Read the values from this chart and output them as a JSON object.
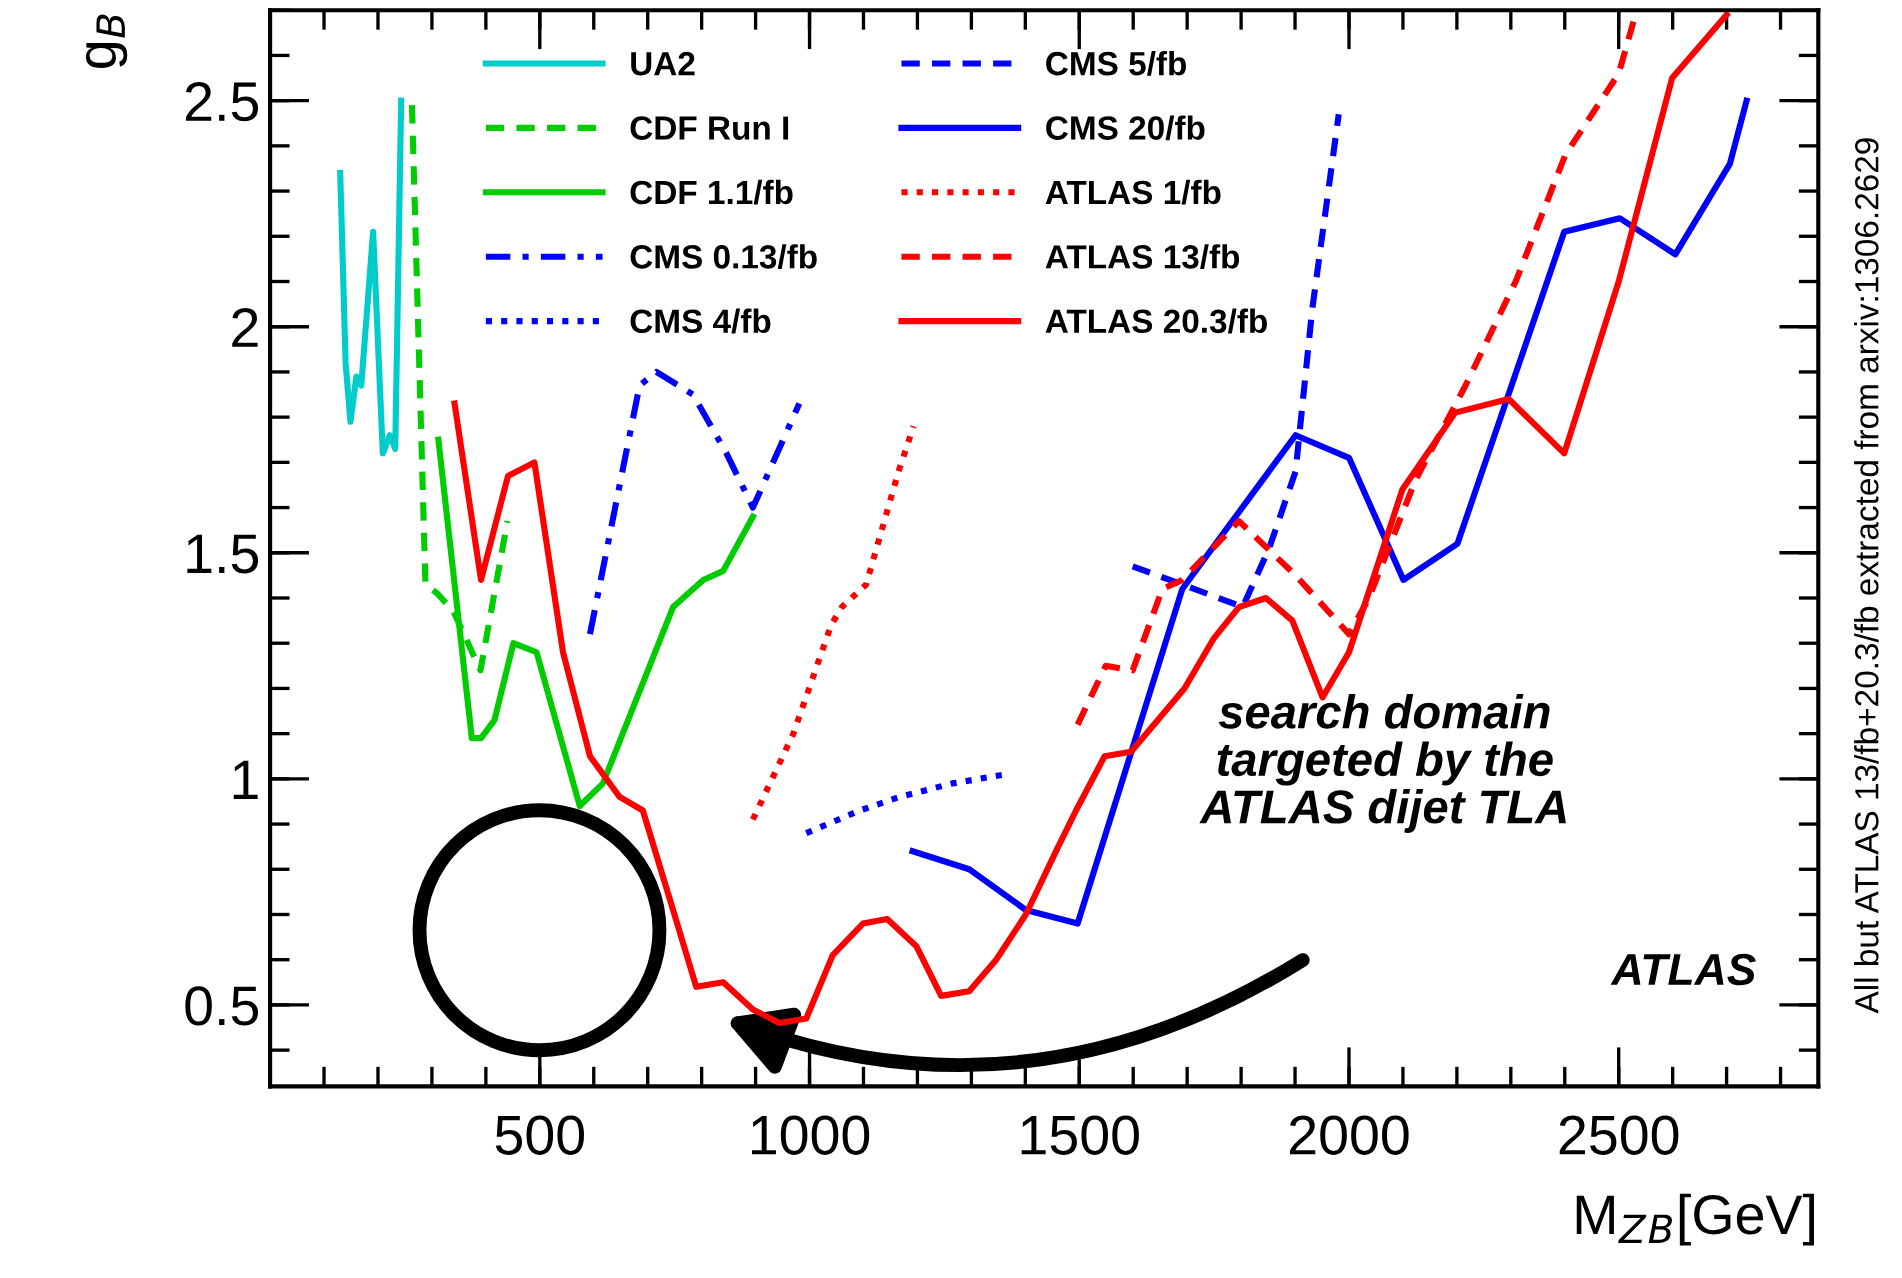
{
  "chart_data": {
    "type": "line",
    "xlabel": "M$_{Z}$$_{B}$[GeV]",
    "ylabel": "g$_{B}$",
    "xlim": [
      0,
      2870
    ],
    "ylim": [
      0.32,
      2.7
    ],
    "xticks": [
      500,
      1000,
      1500,
      2000,
      2500
    ],
    "yticks": [
      0.5,
      1,
      1.5,
      2,
      2.5
    ],
    "grid": false,
    "legend": "top left",
    "marker": "none",
    "annotations": [
      "search domain\ntargeted by the\nATLAS dijet TLA",
      "ATLAS",
      "All but ATLAS 13/fb+20.3/fb extracted from arxiv:1306.2629"
    ],
    "series": [
      {
        "name": "UA2",
        "color": "#00cccc",
        "line_style": "solid",
        "x": [
          130,
          140,
          149,
          160,
          169,
          191,
          209,
          222,
          232,
          243
        ],
        "values": [
          2.34,
          1.92,
          1.79,
          1.89,
          1.87,
          2.21,
          1.72,
          1.76,
          1.73,
          2.5
        ]
      },
      {
        "name": "CDF Run I",
        "color": "#00cc00",
        "line_style": "dashed",
        "x": [
          263,
          288,
          310,
          340,
          390,
          440
        ],
        "values": [
          2.49,
          1.43,
          1.41,
          1.37,
          1.24,
          1.57
        ]
      },
      {
        "name": "CDF 1.1/fb",
        "color": "#00cc00",
        "line_style": "solid",
        "x": [
          312,
          374,
          391,
          416,
          451,
          494,
          574,
          617,
          747,
          803,
          840,
          895
        ],
        "values": [
          1.75,
          1.09,
          1.09,
          1.13,
          1.3,
          1.28,
          0.94,
          0.99,
          1.38,
          1.44,
          1.46,
          1.58
        ]
      },
      {
        "name": "CMS 0.13/fb",
        "color": "#0000ff",
        "line_style": "dashdot",
        "x": [
          593,
          648,
          685,
          716,
          784,
          846,
          895,
          981
        ],
        "values": [
          1.32,
          1.65,
          1.87,
          1.9,
          1.85,
          1.72,
          1.6,
          1.83
        ]
      },
      {
        "name": "CMS 4/fb",
        "color": "#0000ff",
        "line_style": "dotted",
        "x": [
          994,
          1093,
          1167,
          1265,
          1364
        ],
        "values": [
          0.88,
          0.93,
          0.96,
          0.99,
          1.01
        ]
      },
      {
        "name": "CMS 5/fb",
        "color": "#0000ff",
        "line_style": "dashed",
        "x": [
          1599,
          1691,
          1803,
          1852,
          1901,
          1932,
          1981
        ],
        "values": [
          1.47,
          1.43,
          1.38,
          1.51,
          1.68,
          2.04,
          2.47
        ]
      },
      {
        "name": "CMS 20/fb",
        "color": "#0000ff",
        "line_style": "solid",
        "x": [
          1191,
          1296,
          1401,
          1497,
          1691,
          1901,
          2000,
          2101,
          2201,
          2399,
          2502,
          2605,
          2706,
          2737
        ],
        "values": [
          0.84,
          0.8,
          0.71,
          0.68,
          1.42,
          1.76,
          1.71,
          1.44,
          1.52,
          2.21,
          2.24,
          2.16,
          2.36,
          2.5
        ]
      },
      {
        "name": "ATLAS 1/fb",
        "color": "#ff0000",
        "line_style": "dotted",
        "x": [
          895,
          970,
          1040,
          1060,
          1105,
          1165,
          1193
        ],
        "values": [
          0.91,
          1.1,
          1.34,
          1.38,
          1.43,
          1.68,
          1.78
        ]
      },
      {
        "name": "ATLAS 13/fb",
        "color": "#ff0000",
        "line_style": "dashed",
        "x": [
          1497,
          1549,
          1599,
          1654,
          1691,
          1796,
          1901,
          2000,
          2037,
          2123,
          2216,
          2309,
          2401,
          2500,
          2531
        ],
        "values": [
          1.12,
          1.25,
          1.24,
          1.42,
          1.44,
          1.57,
          1.45,
          1.32,
          1.4,
          1.66,
          1.87,
          2.1,
          2.38,
          2.56,
          2.69
        ]
      },
      {
        "name": "ATLAS 20.3/fb",
        "color": "#ff0000",
        "line_style": "solid",
        "x": [
          342,
          391,
          441,
          490,
          543,
          593,
          648,
          691,
          747,
          790,
          840,
          895,
          944,
          994,
          1043,
          1099,
          1144,
          1198,
          1244,
          1296,
          1346,
          1401,
          1457,
          1494,
          1547,
          1596,
          1695,
          1749,
          1796,
          1846,
          1895,
          1951,
          2000,
          2099,
          2197,
          2296,
          2399,
          2500,
          2599,
          2700
        ],
        "values": [
          1.83,
          1.44,
          1.67,
          1.7,
          1.28,
          1.05,
          0.96,
          0.93,
          0.71,
          0.54,
          0.55,
          0.49,
          0.46,
          0.47,
          0.61,
          0.68,
          0.69,
          0.63,
          0.52,
          0.53,
          0.6,
          0.7,
          0.84,
          0.93,
          1.05,
          1.06,
          1.2,
          1.31,
          1.38,
          1.4,
          1.35,
          1.18,
          1.28,
          1.64,
          1.81,
          1.84,
          1.72,
          2.1,
          2.55,
          2.69
        ]
      }
    ]
  }
}
